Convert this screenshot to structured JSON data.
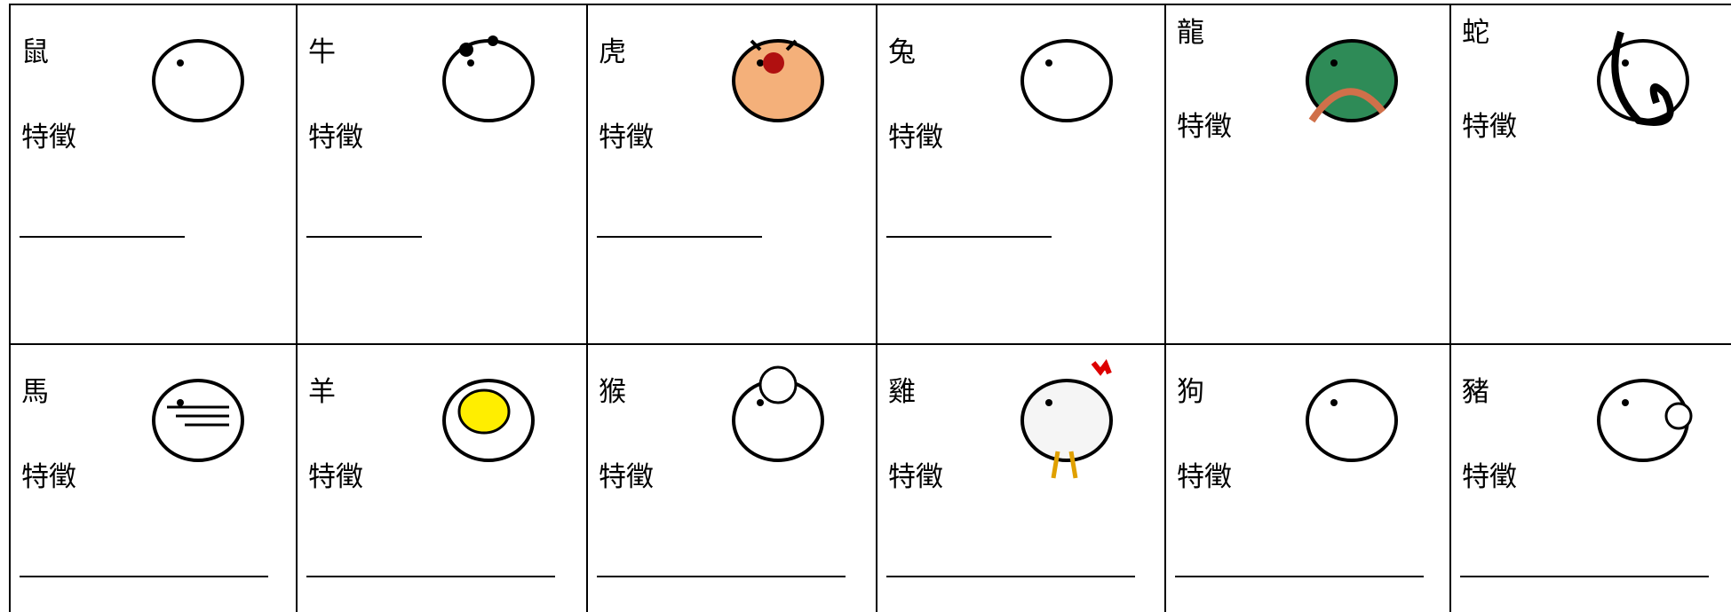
{
  "cells": [
    {
      "name": "鼠",
      "label": "特徵"
    },
    {
      "name": "牛",
      "label": "特徵"
    },
    {
      "name": "虎",
      "label": "特徵"
    },
    {
      "name": "兔",
      "label": "特徵"
    },
    {
      "name": "龍",
      "label": "特徵"
    },
    {
      "name": "蛇",
      "label": "特徵"
    },
    {
      "name": "馬",
      "label": "特徵"
    },
    {
      "name": "羊",
      "label": "特徵"
    },
    {
      "name": "猴",
      "label": "特徵"
    },
    {
      "name": "雞",
      "label": "特徵"
    },
    {
      "name": "狗",
      "label": "特徵"
    },
    {
      "name": "豬",
      "label": "特徵"
    }
  ]
}
